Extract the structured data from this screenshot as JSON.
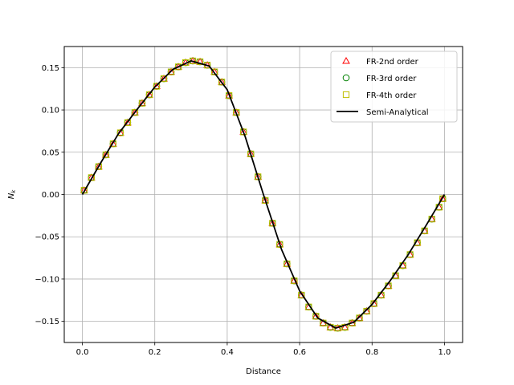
{
  "chart_data": {
    "type": "line",
    "xlabel": "Distance",
    "ylabel": "N",
    "ylabel_sub": "k",
    "xlim": [
      -0.05,
      1.05
    ],
    "ylim": [
      -0.175,
      0.175
    ],
    "xticks": [
      0.0,
      0.2,
      0.4,
      0.6,
      0.8,
      1.0
    ],
    "xtick_labels": [
      "0.0",
      "0.2",
      "0.4",
      "0.6",
      "0.8",
      "1.0"
    ],
    "yticks": [
      -0.15,
      -0.1,
      -0.05,
      0.0,
      0.05,
      0.1,
      0.15
    ],
    "ytick_labels": [
      "−0.15",
      "−0.10",
      "−0.05",
      "0.00",
      "0.05",
      "0.10",
      "0.15"
    ],
    "grid": true,
    "legend_position": "top-right",
    "series": [
      {
        "name": "FR-2nd order",
        "marker": "triangle",
        "color": "#ff0000",
        "x": [
          0.005,
          0.025,
          0.045,
          0.065,
          0.085,
          0.105,
          0.125,
          0.145,
          0.165,
          0.185,
          0.205,
          0.225,
          0.245,
          0.265,
          0.285,
          0.305,
          0.325,
          0.345,
          0.365,
          0.385,
          0.405,
          0.425,
          0.445,
          0.465,
          0.485,
          0.505,
          0.525,
          0.545,
          0.565,
          0.585,
          0.605,
          0.625,
          0.645,
          0.665,
          0.685,
          0.705,
          0.725,
          0.745,
          0.765,
          0.785,
          0.805,
          0.825,
          0.845,
          0.865,
          0.885,
          0.905,
          0.925,
          0.945,
          0.965,
          0.985,
          0.995
        ],
        "y": [
          0.005,
          0.02,
          0.033,
          0.047,
          0.06,
          0.073,
          0.085,
          0.097,
          0.108,
          0.118,
          0.128,
          0.137,
          0.145,
          0.151,
          0.156,
          0.158,
          0.157,
          0.153,
          0.145,
          0.133,
          0.117,
          0.097,
          0.074,
          0.048,
          0.021,
          -0.007,
          -0.034,
          -0.059,
          -0.082,
          -0.102,
          -0.119,
          -0.133,
          -0.144,
          -0.152,
          -0.157,
          -0.158,
          -0.157,
          -0.152,
          -0.146,
          -0.138,
          -0.129,
          -0.119,
          -0.108,
          -0.096,
          -0.084,
          -0.071,
          -0.057,
          -0.043,
          -0.029,
          -0.015,
          -0.005
        ]
      },
      {
        "name": "FR-3rd order",
        "marker": "circle",
        "color": "#008000",
        "x": [
          0.005,
          0.025,
          0.045,
          0.065,
          0.085,
          0.105,
          0.125,
          0.145,
          0.165,
          0.185,
          0.205,
          0.225,
          0.245,
          0.265,
          0.285,
          0.305,
          0.325,
          0.345,
          0.365,
          0.385,
          0.405,
          0.425,
          0.445,
          0.465,
          0.485,
          0.505,
          0.525,
          0.545,
          0.565,
          0.585,
          0.605,
          0.625,
          0.645,
          0.665,
          0.685,
          0.705,
          0.725,
          0.745,
          0.765,
          0.785,
          0.805,
          0.825,
          0.845,
          0.865,
          0.885,
          0.905,
          0.925,
          0.945,
          0.965,
          0.985,
          0.995
        ],
        "y": [
          0.005,
          0.02,
          0.033,
          0.047,
          0.06,
          0.073,
          0.085,
          0.097,
          0.108,
          0.118,
          0.128,
          0.137,
          0.145,
          0.151,
          0.156,
          0.158,
          0.157,
          0.153,
          0.145,
          0.133,
          0.117,
          0.097,
          0.074,
          0.048,
          0.021,
          -0.007,
          -0.034,
          -0.059,
          -0.082,
          -0.102,
          -0.119,
          -0.133,
          -0.144,
          -0.152,
          -0.157,
          -0.158,
          -0.157,
          -0.152,
          -0.146,
          -0.138,
          -0.129,
          -0.119,
          -0.108,
          -0.096,
          -0.084,
          -0.071,
          -0.057,
          -0.043,
          -0.029,
          -0.015,
          -0.005
        ]
      },
      {
        "name": "FR-4th order",
        "marker": "square",
        "color": "#bfbf00",
        "x": [
          0.005,
          0.025,
          0.045,
          0.065,
          0.085,
          0.105,
          0.125,
          0.145,
          0.165,
          0.185,
          0.205,
          0.225,
          0.245,
          0.265,
          0.285,
          0.305,
          0.325,
          0.345,
          0.365,
          0.385,
          0.405,
          0.425,
          0.445,
          0.465,
          0.485,
          0.505,
          0.525,
          0.545,
          0.565,
          0.585,
          0.605,
          0.625,
          0.645,
          0.665,
          0.685,
          0.705,
          0.725,
          0.745,
          0.765,
          0.785,
          0.805,
          0.825,
          0.845,
          0.865,
          0.885,
          0.905,
          0.925,
          0.945,
          0.965,
          0.985,
          0.995
        ],
        "y": [
          0.005,
          0.02,
          0.033,
          0.047,
          0.06,
          0.073,
          0.085,
          0.097,
          0.108,
          0.118,
          0.128,
          0.137,
          0.145,
          0.151,
          0.156,
          0.158,
          0.157,
          0.153,
          0.145,
          0.133,
          0.117,
          0.097,
          0.074,
          0.048,
          0.021,
          -0.007,
          -0.034,
          -0.059,
          -0.082,
          -0.102,
          -0.119,
          -0.133,
          -0.144,
          -0.152,
          -0.157,
          -0.158,
          -0.157,
          -0.152,
          -0.146,
          -0.138,
          -0.129,
          -0.119,
          -0.108,
          -0.096,
          -0.084,
          -0.071,
          -0.057,
          -0.043,
          -0.029,
          -0.015,
          -0.005
        ]
      },
      {
        "name": "Semi-Analytical",
        "marker": "line",
        "color": "#000000",
        "x": [
          0.0,
          0.05,
          0.1,
          0.15,
          0.2,
          0.25,
          0.3,
          0.35,
          0.4,
          0.45,
          0.5,
          0.55,
          0.6,
          0.65,
          0.7,
          0.75,
          0.8,
          0.85,
          0.9,
          0.95,
          1.0
        ],
        "y": [
          0.0,
          0.037,
          0.072,
          0.1,
          0.127,
          0.148,
          0.158,
          0.152,
          0.124,
          0.068,
          0.0,
          -0.065,
          -0.114,
          -0.146,
          -0.158,
          -0.151,
          -0.13,
          -0.102,
          -0.071,
          -0.036,
          0.0
        ]
      }
    ]
  }
}
